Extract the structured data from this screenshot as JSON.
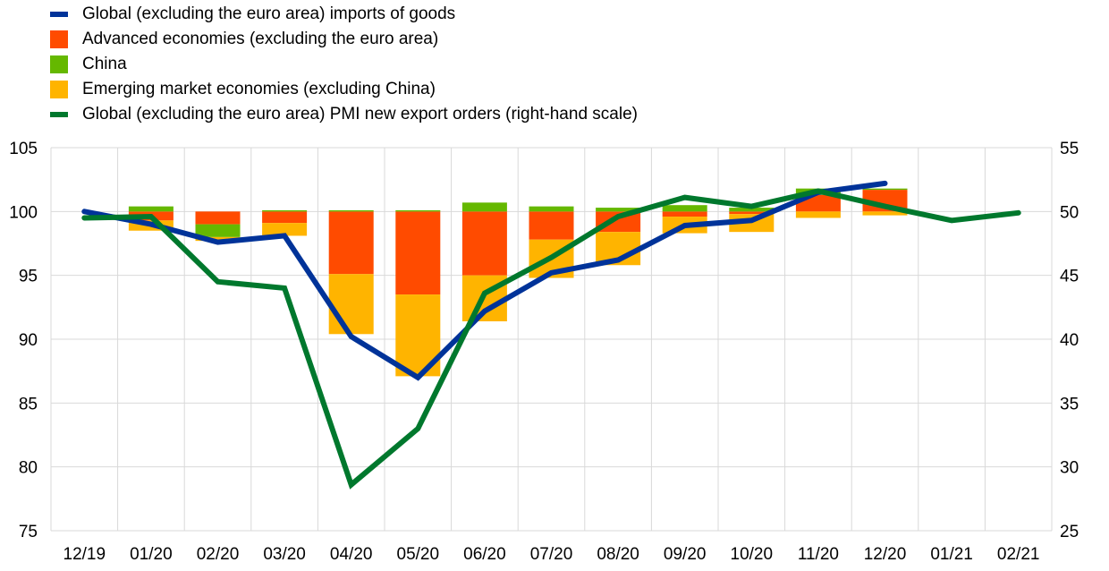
{
  "chart_data": {
    "type": "bar",
    "title": "",
    "xlabel": "",
    "ylabel": "",
    "categories": [
      "12/19",
      "01/20",
      "02/20",
      "03/20",
      "04/20",
      "05/20",
      "06/20",
      "07/20",
      "08/20",
      "09/20",
      "10/20",
      "11/20",
      "12/20",
      "01/21",
      "02/21"
    ],
    "left_axis": {
      "ylim": [
        75,
        105
      ],
      "ticks": [
        105,
        100,
        95,
        90,
        85,
        80,
        75
      ]
    },
    "right_axis": {
      "ylim": [
        25,
        55
      ],
      "ticks": [
        55,
        50,
        45,
        40,
        35,
        30,
        25
      ]
    },
    "bar_baseline": 100,
    "grid": true,
    "legend_position": "top-left",
    "series": [
      {
        "name": "Global (excluding the euro area) imports of goods",
        "kind": "line",
        "axis": "left",
        "color": "#003399",
        "values": [
          100.0,
          99.0,
          97.6,
          98.1,
          90.2,
          87.0,
          92.2,
          95.2,
          96.2,
          98.9,
          99.3,
          101.5,
          102.2,
          null,
          null
        ]
      },
      {
        "name": "Advanced economies (excluding the euro area)",
        "kind": "stacked-bar",
        "axis": "left",
        "color": "#ff4b00",
        "values": [
          0,
          -0.7,
          -1.0,
          -0.9,
          -4.9,
          -6.5,
          -5.0,
          -2.2,
          -1.6,
          -0.4,
          -0.2,
          1.3,
          1.7,
          null,
          null
        ]
      },
      {
        "name": "China",
        "kind": "stacked-bar",
        "axis": "left",
        "color": "#65b800",
        "values": [
          0,
          0.4,
          -1.0,
          0.1,
          0.1,
          0.1,
          0.7,
          0.4,
          0.3,
          0.5,
          0.3,
          0.5,
          0.1,
          null,
          null
        ]
      },
      {
        "name": "Emerging market economies (excluding China)",
        "kind": "stacked-bar",
        "axis": "left",
        "color": "#ffb400",
        "values": [
          0,
          -0.8,
          -0.3,
          -1.0,
          -4.7,
          -6.4,
          -3.6,
          -3.0,
          -2.6,
          -1.3,
          -1.4,
          -0.5,
          -0.3,
          null,
          null
        ]
      },
      {
        "name": "Global (excluding the euro area) PMI new export orders (right-hand scale)",
        "kind": "line",
        "axis": "right",
        "color": "#00782d",
        "values": [
          49.5,
          49.6,
          44.5,
          44.0,
          28.6,
          33.0,
          43.6,
          46.4,
          49.6,
          51.1,
          50.4,
          51.6,
          50.4,
          49.3,
          49.9
        ]
      }
    ]
  }
}
